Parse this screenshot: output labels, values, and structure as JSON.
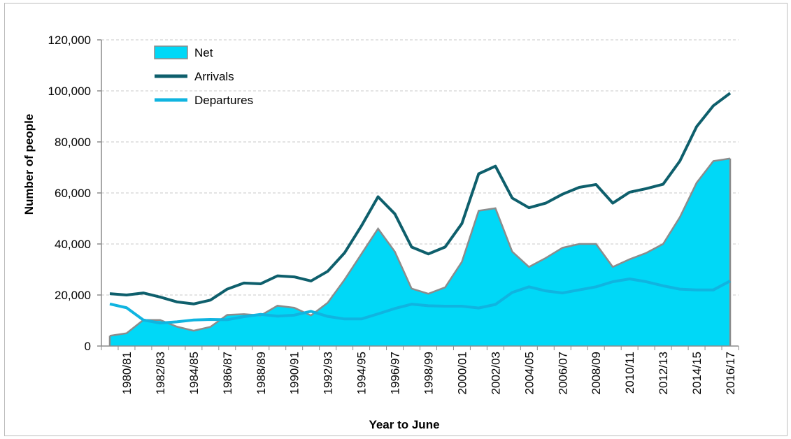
{
  "chart_data": {
    "type": "area",
    "x": [
      "1979/80",
      "1980/81",
      "1981/82",
      "1982/83",
      "1983/84",
      "1984/85",
      "1985/86",
      "1986/87",
      "1987/88",
      "1988/89",
      "1989/90",
      "1990/91",
      "1991/92",
      "1992/93",
      "1993/94",
      "1994/95",
      "1995/96",
      "1996/97",
      "1997/98",
      "1998/99",
      "1999/00",
      "2000/01",
      "2001/02",
      "2002/03",
      "2003/04",
      "2004/05",
      "2005/06",
      "2006/07",
      "2007/08",
      "2008/09",
      "2009/10",
      "2010/11",
      "2011/12",
      "2012/13",
      "2013/14",
      "2014/15",
      "2015/16",
      "2016/17"
    ],
    "x_tick_labels": [
      "1980/81",
      "1982/83",
      "1984/85",
      "1986/87",
      "1988/89",
      "1990/91",
      "1992/93",
      "1994/95",
      "1996/97",
      "1998/99",
      "2000/01",
      "2002/03",
      "2004/05",
      "2006/07",
      "2008/09",
      "2010/11",
      "2012/13",
      "2014/15",
      "2016/17"
    ],
    "series": [
      {
        "name": "Net",
        "kind": "area",
        "color": "#00d8f7",
        "stroke": "#8c8c8c",
        "values": [
          4000,
          5000,
          10200,
          10200,
          7600,
          6000,
          7500,
          12200,
          12500,
          12000,
          15800,
          15000,
          12000,
          17000,
          26000,
          36000,
          46000,
          37000,
          22500,
          20500,
          23000,
          33000,
          53000,
          54000,
          37000,
          31000,
          34500,
          38500,
          40000,
          40000,
          31000,
          34000,
          36500,
          40000,
          50500,
          64000,
          72500,
          73500
        ]
      },
      {
        "name": "Arrivals",
        "kind": "line",
        "color": "#0e5f6c",
        "values": [
          20500,
          20000,
          20800,
          19200,
          17300,
          16500,
          18000,
          22300,
          24700,
          24400,
          27500,
          27100,
          25500,
          29300,
          36500,
          47000,
          58500,
          51800,
          38800,
          36100,
          38800,
          48000,
          67500,
          70500,
          58000,
          54200,
          56000,
          59500,
          62200,
          63300,
          56000,
          60300,
          61700,
          63400,
          72500,
          86000,
          94200,
          99100
        ]
      },
      {
        "name": "Departures",
        "kind": "line",
        "color": "#10b4e0",
        "values": [
          16500,
          15000,
          10200,
          9000,
          9500,
          10200,
          10400,
          10300,
          11500,
          12400,
          11700,
          12100,
          13600,
          11600,
          10600,
          10600,
          12600,
          14700,
          16400,
          15800,
          15600,
          15600,
          14900,
          16300,
          21000,
          23200,
          21600,
          20800,
          22000,
          23200,
          25200,
          26300,
          25200,
          23600,
          22300,
          22000,
          22000,
          25500
        ]
      }
    ],
    "xlabel": "Year to June",
    "ylabel": "Number of people",
    "ylim": [
      0,
      120000
    ],
    "yticks": [
      "0",
      "20,000",
      "40,000",
      "60,000",
      "80,000",
      "100,000",
      "120,000"
    ],
    "grid": "horizontal dashed",
    "legend_position": "top-left"
  }
}
